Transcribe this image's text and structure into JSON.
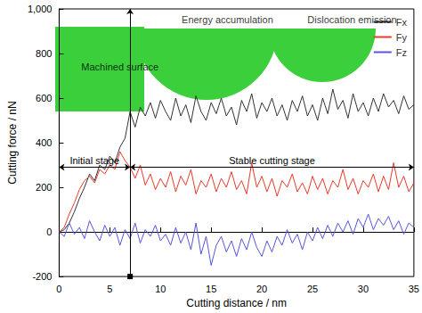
{
  "chart_data": {
    "type": "line",
    "x_label": "Cutting distance / nm",
    "y_label": "Cutting force / nN",
    "xlim": [
      0,
      35
    ],
    "xticks": [
      0,
      5,
      10,
      15,
      20,
      25,
      30,
      35
    ],
    "ylim": [
      -200,
      1000
    ],
    "yticks": [
      -200,
      0,
      200,
      400,
      600,
      800,
      1000
    ],
    "grid": false,
    "legend": "top-right",
    "x": [
      0,
      0.5,
      1,
      1.5,
      2,
      2.5,
      3,
      3.5,
      4,
      4.5,
      5,
      5.5,
      6,
      6.5,
      7,
      7.5,
      8,
      8.5,
      9,
      9.5,
      10,
      10.5,
      11,
      11.5,
      12,
      12.5,
      13,
      13.5,
      14,
      14.5,
      15,
      15.5,
      16,
      16.5,
      17,
      17.5,
      18,
      18.5,
      19,
      19.5,
      20,
      20.5,
      21,
      21.5,
      22,
      22.5,
      23,
      23.5,
      24,
      24.5,
      25,
      25.5,
      26,
      26.5,
      27,
      27.5,
      28,
      28.5,
      29,
      29.5,
      30,
      30.5,
      31,
      31.5,
      32,
      32.5,
      33,
      33.5,
      34,
      34.5,
      35
    ],
    "series": [
      {
        "name": "Fx",
        "color": "#333333",
        "values": [
          0,
          10,
          40,
          90,
          150,
          200,
          260,
          230,
          300,
          280,
          340,
          310,
          380,
          420,
          540,
          470,
          560,
          520,
          580,
          510,
          590,
          540,
          500,
          600,
          520,
          570,
          490,
          610,
          540,
          500,
          580,
          530,
          600,
          520,
          560,
          480,
          590,
          540,
          620,
          510,
          580,
          540,
          600,
          520,
          570,
          500,
          590,
          540,
          610,
          520,
          570,
          500,
          600,
          530,
          640,
          550,
          590,
          510,
          620,
          540,
          580,
          520,
          600,
          540,
          620,
          560,
          590,
          530,
          610,
          550,
          570
        ]
      },
      {
        "name": "Fy",
        "color": "#e8392a",
        "values": [
          0,
          20,
          80,
          130,
          190,
          230,
          250,
          220,
          280,
          260,
          300,
          280,
          360,
          320,
          290,
          240,
          300,
          210,
          260,
          190,
          240,
          200,
          270,
          180,
          250,
          210,
          280,
          170,
          230,
          200,
          260,
          180,
          240,
          200,
          270,
          190,
          230,
          170,
          310,
          200,
          250,
          180,
          240,
          160,
          230,
          200,
          260,
          180,
          220,
          170,
          250,
          190,
          240,
          170,
          230,
          200,
          280,
          190,
          240,
          170,
          230,
          200,
          260,
          180,
          250,
          190,
          310,
          200,
          250,
          180,
          220
        ]
      },
      {
        "name": "Fz",
        "color": "#5555dd",
        "values": [
          0,
          -20,
          40,
          -10,
          20,
          -30,
          50,
          0,
          -40,
          30,
          -20,
          20,
          -60,
          10,
          -30,
          40,
          -50,
          10,
          -20,
          30,
          -40,
          -10,
          -60,
          20,
          -50,
          0,
          -80,
          40,
          -100,
          -20,
          -150,
          -60,
          -20,
          -90,
          -40,
          -110,
          -30,
          -80,
          0,
          -70,
          -110,
          -40,
          -90,
          -20,
          -60,
          10,
          -50,
          -10,
          -80,
          0,
          -40,
          20,
          -30,
          30,
          -20,
          40,
          0,
          50,
          -10,
          60,
          20,
          80,
          10,
          60,
          30,
          70,
          10,
          50,
          -10,
          40,
          20
        ]
      }
    ],
    "stages": [
      {
        "label": "Initial stage",
        "x": [
          0,
          7
        ],
        "y": 290
      },
      {
        "label": "Stable cutting stage",
        "x": [
          7,
          35
        ],
        "y": 290
      }
    ],
    "annotations": [
      {
        "text": "Machined surface",
        "x": 6.0,
        "y": 740
      },
      {
        "text": "Energy accumulation",
        "x": 16.6,
        "y": 952
      },
      {
        "text": "Dislocation emission",
        "x": 28.9,
        "y": 952
      }
    ]
  }
}
